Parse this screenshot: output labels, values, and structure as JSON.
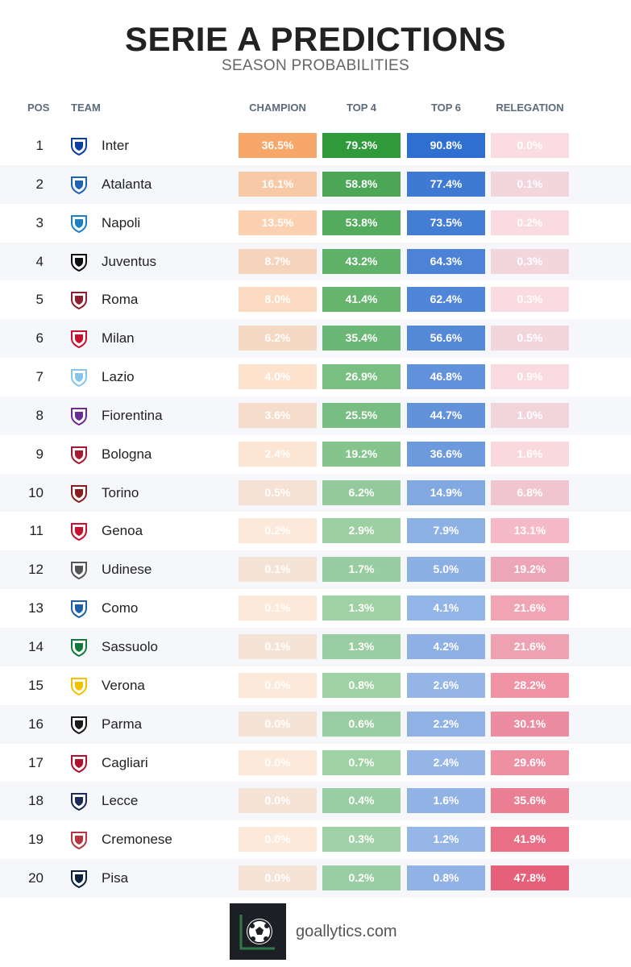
{
  "title": "SERIE A PREDICTIONS",
  "subtitle": "SEASON PROBABILITIES",
  "columns": {
    "pos": "POS",
    "team": "TEAM",
    "champion": "CHAMPION",
    "top4": "TOP 4",
    "top6": "TOP 6",
    "relegation": "RELEGATION"
  },
  "colors": {
    "champion": "#f8a76a",
    "top4": "#2e9a3a",
    "top6": "#2f6fcf",
    "relegation": "#e7607a"
  },
  "footer": {
    "site": "goallytics.com",
    "logo_icon": "soccer-ball-icon"
  },
  "chart_data": {
    "type": "table",
    "title": "SERIE A PREDICTIONS",
    "subtitle": "SEASON PROBABILITIES",
    "columns": [
      "POS",
      "TEAM",
      "CHAMPION",
      "TOP 4",
      "TOP 6",
      "RELEGATION"
    ],
    "rows": [
      {
        "pos": 1,
        "team": "Inter",
        "logo_color": "#0b3ea6",
        "champion": 36.5,
        "top4": 79.3,
        "top6": 90.8,
        "relegation": 0.0
      },
      {
        "pos": 2,
        "team": "Atalanta",
        "logo_color": "#1e63b8",
        "champion": 16.1,
        "top4": 58.8,
        "top6": 77.4,
        "relegation": 0.1
      },
      {
        "pos": 3,
        "team": "Napoli",
        "logo_color": "#1d7fc4",
        "champion": 13.5,
        "top4": 53.8,
        "top6": 73.5,
        "relegation": 0.2
      },
      {
        "pos": 4,
        "team": "Juventus",
        "logo_color": "#111111",
        "champion": 8.7,
        "top4": 43.2,
        "top6": 64.3,
        "relegation": 0.3
      },
      {
        "pos": 5,
        "team": "Roma",
        "logo_color": "#8e1f2f",
        "champion": 8.0,
        "top4": 41.4,
        "top6": 62.4,
        "relegation": 0.3
      },
      {
        "pos": 6,
        "team": "Milan",
        "logo_color": "#c8102e",
        "champion": 6.2,
        "top4": 35.4,
        "top6": 56.6,
        "relegation": 0.5
      },
      {
        "pos": 7,
        "team": "Lazio",
        "logo_color": "#87c6ea",
        "champion": 4.0,
        "top4": 26.9,
        "top6": 46.8,
        "relegation": 0.9
      },
      {
        "pos": 8,
        "team": "Fiorentina",
        "logo_color": "#6a2c91",
        "champion": 3.6,
        "top4": 25.5,
        "top6": 44.7,
        "relegation": 1.0
      },
      {
        "pos": 9,
        "team": "Bologna",
        "logo_color": "#a71930",
        "champion": 2.4,
        "top4": 19.2,
        "top6": 36.6,
        "relegation": 1.6
      },
      {
        "pos": 10,
        "team": "Torino",
        "logo_color": "#8a1e1e",
        "champion": 0.5,
        "top4": 6.2,
        "top6": 14.9,
        "relegation": 6.8
      },
      {
        "pos": 11,
        "team": "Genoa",
        "logo_color": "#c8102e",
        "champion": 0.2,
        "top4": 2.9,
        "top6": 7.9,
        "relegation": 13.1
      },
      {
        "pos": 12,
        "team": "Udinese",
        "logo_color": "#555555",
        "champion": 0.1,
        "top4": 1.7,
        "top6": 5.0,
        "relegation": 19.2
      },
      {
        "pos": 13,
        "team": "Como",
        "logo_color": "#1f5fa8",
        "champion": 0.1,
        "top4": 1.3,
        "top6": 4.1,
        "relegation": 21.6
      },
      {
        "pos": 14,
        "team": "Sassuolo",
        "logo_color": "#0f7a3a",
        "champion": 0.1,
        "top4": 1.3,
        "top6": 4.2,
        "relegation": 21.6
      },
      {
        "pos": 15,
        "team": "Verona",
        "logo_color": "#f2c200",
        "champion": 0.0,
        "top4": 0.8,
        "top6": 2.6,
        "relegation": 28.2
      },
      {
        "pos": 16,
        "team": "Parma",
        "logo_color": "#1a1a1a",
        "champion": 0.0,
        "top4": 0.6,
        "top6": 2.2,
        "relegation": 30.1
      },
      {
        "pos": 17,
        "team": "Cagliari",
        "logo_color": "#b2102f",
        "champion": 0.0,
        "top4": 0.7,
        "top6": 2.4,
        "relegation": 29.6
      },
      {
        "pos": 18,
        "team": "Lecce",
        "logo_color": "#1c2a5a",
        "champion": 0.0,
        "top4": 0.4,
        "top6": 1.6,
        "relegation": 35.6
      },
      {
        "pos": 19,
        "team": "Cremonese",
        "logo_color": "#b5363f",
        "champion": 0.0,
        "top4": 0.3,
        "top6": 1.2,
        "relegation": 41.9
      },
      {
        "pos": 20,
        "team": "Pisa",
        "logo_color": "#0c2340",
        "champion": 0.0,
        "top4": 0.2,
        "top6": 0.8,
        "relegation": 47.8
      }
    ]
  }
}
